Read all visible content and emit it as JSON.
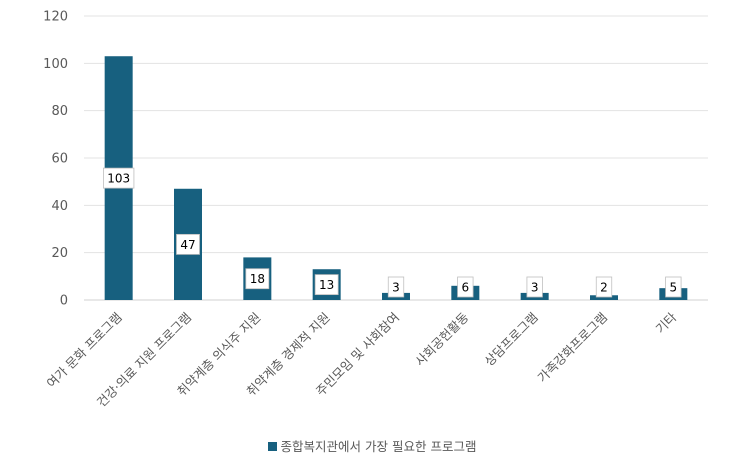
{
  "chart_data": {
    "type": "bar",
    "categories": [
      "여가 문화 프로그램",
      "건강·의료 지원 프로그램",
      "취약계층 의식주 지원",
      "취약계층 경제적 지원",
      "주민모임 및 사회참여",
      "사회공헌활동",
      "상담프로그램",
      "가족강화프로그램",
      "기타"
    ],
    "series": [
      {
        "name": "종합복지관에서 가장 필요한 프로그램",
        "values": [
          103,
          47,
          18,
          13,
          3,
          6,
          3,
          2,
          5
        ]
      }
    ],
    "ylim": [
      0,
      120
    ],
    "yticks": [
      0,
      20,
      40,
      60,
      80,
      100,
      120
    ],
    "grid": true,
    "legend_position": "bottom",
    "color": "#17607f"
  }
}
